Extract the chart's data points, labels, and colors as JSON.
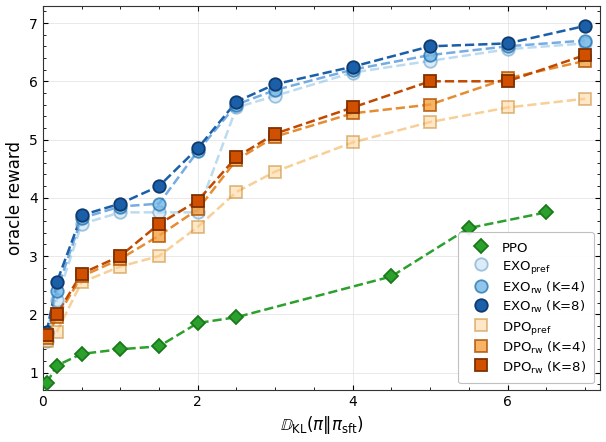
{
  "title": "",
  "xlabel": "$\\mathbb{D}_{\\mathrm{KL}}(\\pi\\|\\pi_{\\mathrm{sft}})$",
  "ylabel": "oracle reward",
  "xlim": [
    0,
    7.2
  ],
  "ylim": [
    0.7,
    7.3
  ],
  "yticks": [
    1,
    2,
    3,
    4,
    5,
    6,
    7
  ],
  "xticks": [
    0,
    2,
    4,
    6
  ],
  "PPO": {
    "x": [
      0.05,
      0.18,
      0.5,
      1.0,
      1.5,
      2.0,
      2.5,
      4.5,
      5.5,
      6.5
    ],
    "y": [
      0.82,
      1.12,
      1.32,
      1.4,
      1.45,
      1.85,
      1.95,
      2.65,
      3.48,
      3.75
    ],
    "color": "#2ca02c",
    "marker": "D",
    "label": "PPO",
    "line_alpha": 1.0,
    "marker_alpha": 1.0,
    "ms": 7
  },
  "EXO_pref": {
    "x": [
      0.05,
      0.18,
      0.5,
      1.0,
      1.5,
      2.0,
      2.5,
      3.0,
      4.0,
      5.0,
      6.0,
      7.0
    ],
    "y": [
      1.55,
      2.25,
      3.55,
      3.75,
      3.75,
      3.75,
      5.55,
      5.75,
      6.15,
      6.35,
      6.55,
      6.65
    ],
    "color": "#6cb4e4",
    "marker": "o",
    "label": "EXO$_{\\mathrm{pref}}$",
    "line_alpha": 0.5,
    "marker_alpha": 0.5,
    "ms": 9
  },
  "EXO_rw_K4": {
    "x": [
      0.05,
      0.18,
      0.5,
      1.0,
      1.5,
      2.0,
      2.5,
      3.0,
      4.0,
      5.0,
      6.0,
      7.0
    ],
    "y": [
      1.65,
      2.4,
      3.65,
      3.85,
      3.9,
      4.8,
      5.6,
      5.85,
      6.2,
      6.45,
      6.6,
      6.7
    ],
    "color": "#4a90d9",
    "marker": "o",
    "label": "EXO$_{\\mathrm{rw}}$ (K=4)",
    "line_alpha": 0.75,
    "marker_alpha": 0.75,
    "ms": 9
  },
  "EXO_rw_K8": {
    "x": [
      0.05,
      0.18,
      0.5,
      1.0,
      1.5,
      2.0,
      2.5,
      3.0,
      4.0,
      5.0,
      6.0,
      7.0
    ],
    "y": [
      1.7,
      2.55,
      3.7,
      3.9,
      4.2,
      4.85,
      5.65,
      5.95,
      6.25,
      6.6,
      6.65,
      6.95
    ],
    "color": "#1a5fa8",
    "marker": "o",
    "label": "EXO$_{\\mathrm{rw}}$ (K=8)",
    "line_alpha": 1.0,
    "marker_alpha": 1.0,
    "ms": 9
  },
  "DPO_pref": {
    "x": [
      0.05,
      0.18,
      0.5,
      1.0,
      1.5,
      2.0,
      2.5,
      3.0,
      4.0,
      5.0,
      6.0,
      7.0
    ],
    "y": [
      1.55,
      1.7,
      2.55,
      2.82,
      3.0,
      3.5,
      4.1,
      4.45,
      4.95,
      5.3,
      5.55,
      5.7
    ],
    "color": "#f5a623",
    "marker": "s",
    "label": "DPO$_{\\mathrm{pref}}$",
    "line_alpha": 0.5,
    "marker_alpha": 0.5,
    "ms": 9
  },
  "DPO_rw_K4": {
    "x": [
      0.05,
      0.18,
      0.5,
      1.0,
      1.5,
      2.0,
      2.5,
      3.0,
      4.0,
      5.0,
      6.0,
      7.0
    ],
    "y": [
      1.6,
      1.95,
      2.65,
      2.95,
      3.35,
      3.8,
      4.65,
      5.05,
      5.45,
      5.6,
      6.05,
      6.35
    ],
    "color": "#e07800",
    "marker": "s",
    "label": "DPO$_{\\mathrm{rw}}$ (K=4)",
    "line_alpha": 0.8,
    "marker_alpha": 0.8,
    "ms": 9
  },
  "DPO_rw_K8": {
    "x": [
      0.05,
      0.18,
      0.5,
      1.0,
      1.5,
      2.0,
      2.5,
      3.0,
      4.0,
      5.0,
      6.0,
      7.0
    ],
    "y": [
      1.65,
      2.0,
      2.7,
      3.0,
      3.55,
      3.95,
      4.7,
      5.1,
      5.55,
      6.0,
      6.0,
      6.45
    ],
    "color": "#c04a00",
    "marker": "s",
    "label": "DPO$_{\\mathrm{rw}}$ (K=8)",
    "line_alpha": 1.0,
    "marker_alpha": 1.0,
    "ms": 9
  },
  "background_color": "#ffffff",
  "legend_fontsize": 9.5,
  "axis_fontsize": 12,
  "tick_fontsize": 10
}
